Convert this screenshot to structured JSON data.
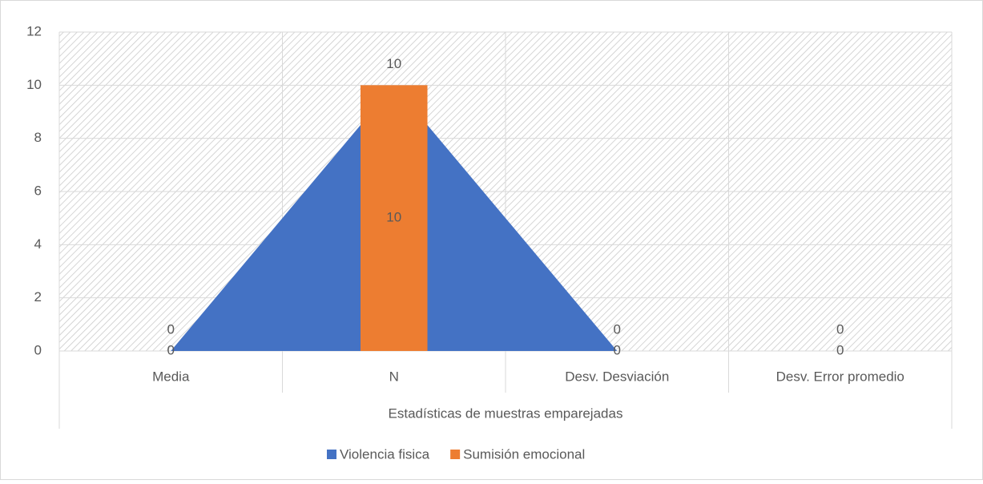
{
  "chart_data": {
    "type": "combo",
    "x_label": "Estadísticas de muestras emparejadas",
    "categories": [
      "Media",
      "N",
      "Desv. Desviación",
      "Desv. Error promedio"
    ],
    "series": [
      {
        "name": "Violencia fisica",
        "type": "area",
        "color": "#4472c4",
        "values": [
          0,
          10,
          0,
          0
        ]
      },
      {
        "name": "Sumisión emocional",
        "type": "bar",
        "color": "#ed7d31",
        "values": [
          0,
          10,
          0,
          0
        ]
      }
    ],
    "ylim": [
      0,
      12
    ],
    "yticks": [
      0,
      2,
      4,
      6,
      8,
      10,
      12
    ],
    "grid": true,
    "legend": "bottom"
  }
}
